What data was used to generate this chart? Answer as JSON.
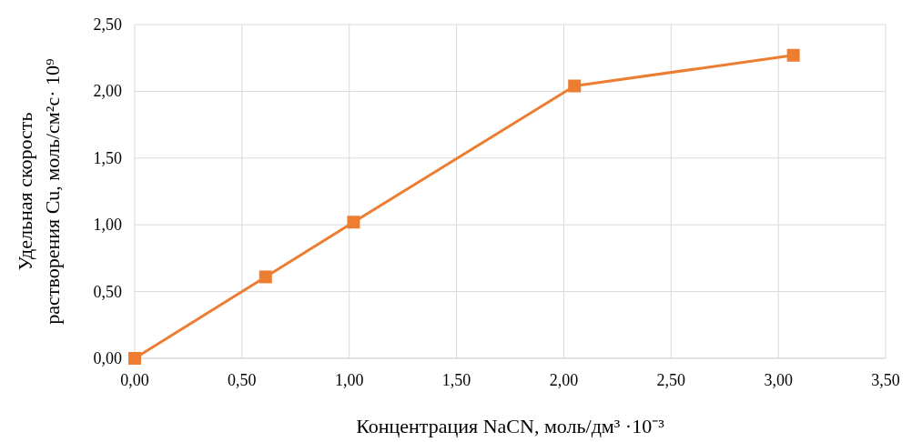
{
  "chart_data": {
    "type": "line",
    "xlabel": "Концентрация NaCN, моль/дм³ ·10⁻³",
    "ylabel": "Удельная скорость\nрастворения Cu, моль/см²с· 10⁹",
    "x": [
      0,
      0.61,
      1.02,
      2.05,
      3.07
    ],
    "series": [
      {
        "color": "#ed7d31",
        "values": [
          0,
          0.61,
          1.02,
          2.04,
          2.27
        ]
      }
    ],
    "xlim": [
      0,
      3.5
    ],
    "ylim": [
      0,
      2.5
    ],
    "xticks": [
      {
        "value": 0,
        "label": "0,00"
      },
      {
        "value": 0.5,
        "label": "0,50"
      },
      {
        "value": 1,
        "label": "1,00"
      },
      {
        "value": 1.5,
        "label": "1,50"
      },
      {
        "value": 2,
        "label": "2,00"
      },
      {
        "value": 2.5,
        "label": "2,50"
      },
      {
        "value": 3,
        "label": "3,00"
      },
      {
        "value": 3.5,
        "label": "3,50"
      }
    ],
    "yticks": [
      {
        "value": 0,
        "label": "0,00"
      },
      {
        "value": 0.5,
        "label": "0,50"
      },
      {
        "value": 1,
        "label": "1,00"
      },
      {
        "value": 1.5,
        "label": "1,50"
      },
      {
        "value": 2,
        "label": "2,00"
      },
      {
        "value": 2.5,
        "label": "2,50"
      }
    ],
    "grid": true,
    "marker": "square",
    "line_style": "solid"
  }
}
